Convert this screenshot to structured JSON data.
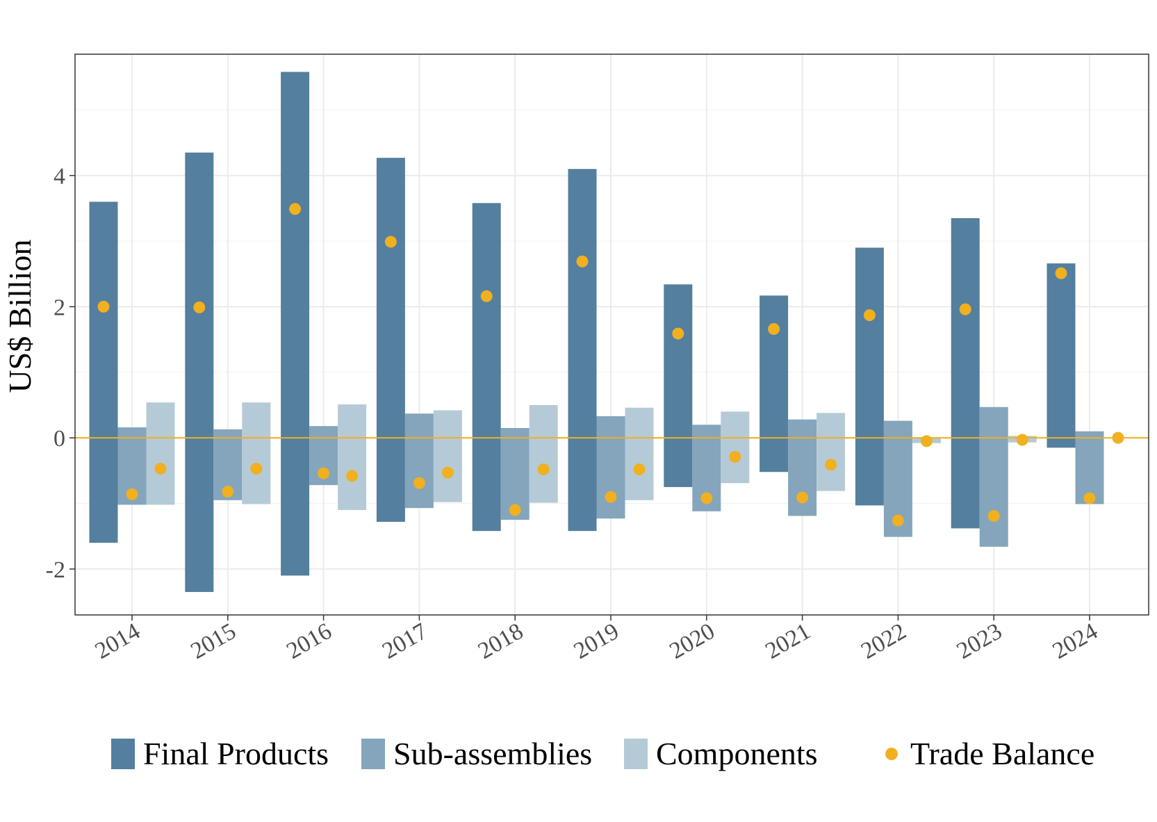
{
  "chart_data": {
    "type": "bar",
    "title": "",
    "xlabel": "",
    "ylabel": "US$ Billion",
    "ylim": [
      -2.7,
      5.85
    ],
    "yticks": [
      -2,
      0,
      2,
      4
    ],
    "ytick_labels": [
      "-2",
      "0",
      "2",
      "4"
    ],
    "grid": true,
    "legend_position": "bottom",
    "categories": [
      "2014",
      "2015",
      "2016",
      "2017",
      "2018",
      "2019",
      "2020",
      "2021",
      "2022",
      "2023",
      "2024"
    ],
    "series": [
      {
        "name": "Final Products",
        "type": "bar",
        "color": "#547f9e",
        "positive": [
          3.6,
          4.35,
          5.58,
          4.27,
          3.58,
          4.1,
          2.34,
          2.17,
          2.9,
          3.35,
          2.66
        ],
        "negative": [
          -1.6,
          -2.35,
          -2.1,
          -1.28,
          -1.42,
          -1.42,
          -0.75,
          -0.52,
          -1.03,
          -1.38,
          -0.15
        ]
      },
      {
        "name": "Sub-assemblies",
        "type": "bar",
        "color": "#84a5bc",
        "positive": [
          0.16,
          0.13,
          0.18,
          0.37,
          0.15,
          0.33,
          0.2,
          0.28,
          0.26,
          0.47,
          0.1
        ],
        "negative": [
          -1.02,
          -0.95,
          -0.72,
          -1.07,
          -1.25,
          -1.23,
          -1.12,
          -1.19,
          -1.51,
          -1.66,
          -1.01
        ]
      },
      {
        "name": "Components",
        "type": "bar",
        "color": "#b5cad7",
        "positive": [
          0.54,
          0.54,
          0.51,
          0.42,
          0.5,
          0.46,
          0.4,
          0.38,
          0.0,
          0.03,
          0.0
        ],
        "negative": [
          -1.02,
          -1.01,
          -1.1,
          -0.98,
          -0.99,
          -0.95,
          -0.69,
          -0.81,
          -0.08,
          -0.07,
          0.0
        ]
      },
      {
        "name": "Trade Balance",
        "type": "scatter",
        "color": "#f0b020",
        "points": [
          [
            2.0,
            -0.86,
            -0.47
          ],
          [
            1.99,
            -0.82,
            -0.47
          ],
          [
            3.49,
            -0.54,
            -0.58
          ],
          [
            2.99,
            -0.69,
            -0.53
          ],
          [
            2.16,
            -1.1,
            -0.48
          ],
          [
            2.69,
            -0.9,
            -0.48
          ],
          [
            1.59,
            -0.92,
            -0.29
          ],
          [
            1.66,
            -0.91,
            -0.41
          ],
          [
            1.87,
            -1.26,
            -0.05
          ],
          [
            1.96,
            -1.19,
            -0.03
          ],
          [
            2.51,
            -0.92,
            0.0
          ]
        ]
      }
    ],
    "zero_line_color": "#f0b020"
  }
}
